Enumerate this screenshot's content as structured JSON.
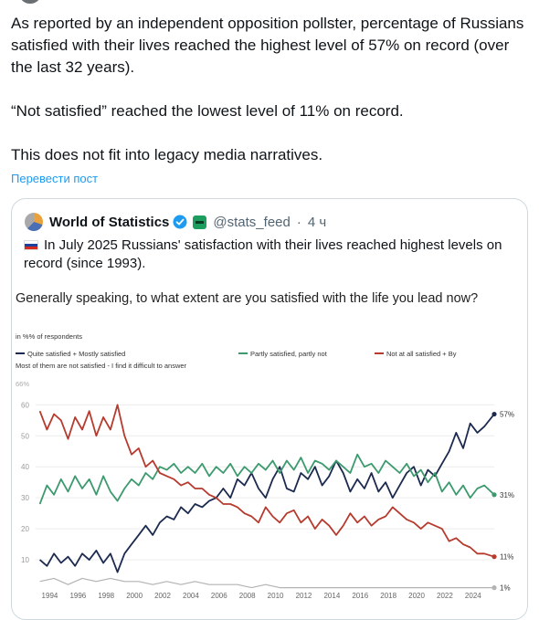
{
  "post": {
    "paragraphs": [
      "As reported by an independent opposition pollster, percentage of Russians satisfied with their lives reached the highest level of 57% on record (over the last 32 years).",
      "“Not satisfied” reached the lowest level of 11% on record.",
      "This does not fit into legacy media narratives."
    ],
    "translate_label": "Перевести пост"
  },
  "quote": {
    "author_name": "World of Statistics",
    "handle": "@stats_feed",
    "separator": "·",
    "time": "4 ч",
    "text": "In July 2025 Russians' satisfaction with their lives reached highest levels on record (since 1993).",
    "figure_question": "Generally speaking, to what extent are you satisfied with the life you lead now?"
  },
  "icons": {
    "verified": "verified-badge-icon",
    "affiliate": "affiliate-badge-icon",
    "flag": "russia-flag-icon"
  },
  "colors": {
    "link": "#1d9bf0",
    "series_satisfied": "#1b2a4e",
    "series_partly": "#3c9a6e",
    "series_not": "#b63b2e",
    "series_dk": "#b3b3b3"
  },
  "chart_data": {
    "type": "line",
    "unit_label": "in %% of respondents",
    "legend_note": "Most of them are not satisfied - I find it difficult to answer",
    "ylim": [
      0,
      66
    ],
    "yticks": [
      10,
      20,
      30,
      40,
      50,
      60
    ],
    "ytick_top_label": "66%",
    "xticks": [
      1994,
      1996,
      1998,
      2000,
      2002,
      2004,
      2006,
      2008,
      2010,
      2012,
      2014,
      2016,
      2018,
      2020,
      2022,
      2024
    ],
    "series": [
      {
        "name": "Quite satisfied + Mostly satisfied",
        "end_label": "57%",
        "points": [
          [
            1993.3,
            10
          ],
          [
            1993.8,
            8
          ],
          [
            1994.3,
            12
          ],
          [
            1994.8,
            9
          ],
          [
            1995.3,
            11
          ],
          [
            1995.8,
            8
          ],
          [
            1996.3,
            12
          ],
          [
            1996.8,
            10
          ],
          [
            1997.3,
            13
          ],
          [
            1997.8,
            9
          ],
          [
            1998.3,
            12
          ],
          [
            1998.8,
            6
          ],
          [
            1999.3,
            12
          ],
          [
            1999.8,
            15
          ],
          [
            2000.3,
            18
          ],
          [
            2000.8,
            21
          ],
          [
            2001.3,
            18
          ],
          [
            2001.8,
            22
          ],
          [
            2002.3,
            24
          ],
          [
            2002.8,
            23
          ],
          [
            2003.3,
            27
          ],
          [
            2003.8,
            25
          ],
          [
            2004.3,
            28
          ],
          [
            2004.8,
            27
          ],
          [
            2005.3,
            29
          ],
          [
            2005.8,
            30
          ],
          [
            2006.3,
            33
          ],
          [
            2006.8,
            30
          ],
          [
            2007.3,
            36
          ],
          [
            2007.8,
            34
          ],
          [
            2008.3,
            38
          ],
          [
            2008.8,
            33
          ],
          [
            2009.3,
            30
          ],
          [
            2009.8,
            36
          ],
          [
            2010.3,
            40
          ],
          [
            2010.8,
            33
          ],
          [
            2011.3,
            32
          ],
          [
            2011.8,
            38
          ],
          [
            2012.3,
            36
          ],
          [
            2012.8,
            40
          ],
          [
            2013.3,
            34
          ],
          [
            2013.8,
            37
          ],
          [
            2014.3,
            42
          ],
          [
            2014.8,
            38
          ],
          [
            2015.3,
            32
          ],
          [
            2015.8,
            36
          ],
          [
            2016.3,
            33
          ],
          [
            2016.8,
            38
          ],
          [
            2017.3,
            32
          ],
          [
            2017.8,
            35
          ],
          [
            2018.3,
            30
          ],
          [
            2018.8,
            34
          ],
          [
            2019.3,
            38
          ],
          [
            2019.8,
            40
          ],
          [
            2020.3,
            34
          ],
          [
            2020.8,
            39
          ],
          [
            2021.3,
            37
          ],
          [
            2021.8,
            41
          ],
          [
            2022.3,
            45
          ],
          [
            2022.8,
            51
          ],
          [
            2023.3,
            46
          ],
          [
            2023.8,
            54
          ],
          [
            2024.3,
            51
          ],
          [
            2024.8,
            53
          ],
          [
            2025.5,
            57
          ]
        ]
      },
      {
        "name": "Partly satisfied, partly not",
        "end_label": "31%",
        "points": [
          [
            1993.3,
            28
          ],
          [
            1993.8,
            34
          ],
          [
            1994.3,
            31
          ],
          [
            1994.8,
            36
          ],
          [
            1995.3,
            32
          ],
          [
            1995.8,
            37
          ],
          [
            1996.3,
            33
          ],
          [
            1996.8,
            36
          ],
          [
            1997.3,
            31
          ],
          [
            1997.8,
            37
          ],
          [
            1998.3,
            32
          ],
          [
            1998.8,
            29
          ],
          [
            1999.3,
            33
          ],
          [
            1999.8,
            36
          ],
          [
            2000.3,
            34
          ],
          [
            2000.8,
            38
          ],
          [
            2001.3,
            36
          ],
          [
            2001.8,
            40
          ],
          [
            2002.3,
            39
          ],
          [
            2002.8,
            41
          ],
          [
            2003.3,
            38
          ],
          [
            2003.8,
            40
          ],
          [
            2004.3,
            38
          ],
          [
            2004.8,
            41
          ],
          [
            2005.3,
            37
          ],
          [
            2005.8,
            40
          ],
          [
            2006.3,
            38
          ],
          [
            2006.8,
            41
          ],
          [
            2007.3,
            37
          ],
          [
            2007.8,
            40
          ],
          [
            2008.3,
            38
          ],
          [
            2008.8,
            41
          ],
          [
            2009.3,
            39
          ],
          [
            2009.8,
            42
          ],
          [
            2010.3,
            38
          ],
          [
            2010.8,
            42
          ],
          [
            2011.3,
            39
          ],
          [
            2011.8,
            43
          ],
          [
            2012.3,
            38
          ],
          [
            2012.8,
            42
          ],
          [
            2013.3,
            41
          ],
          [
            2013.8,
            39
          ],
          [
            2014.3,
            42
          ],
          [
            2014.8,
            40
          ],
          [
            2015.3,
            38
          ],
          [
            2015.8,
            44
          ],
          [
            2016.3,
            40
          ],
          [
            2016.8,
            41
          ],
          [
            2017.3,
            38
          ],
          [
            2017.8,
            42
          ],
          [
            2018.3,
            40
          ],
          [
            2018.8,
            38
          ],
          [
            2019.3,
            41
          ],
          [
            2019.8,
            37
          ],
          [
            2020.3,
            39
          ],
          [
            2020.8,
            35
          ],
          [
            2021.3,
            38
          ],
          [
            2021.8,
            32
          ],
          [
            2022.3,
            35
          ],
          [
            2022.8,
            31
          ],
          [
            2023.3,
            34
          ],
          [
            2023.8,
            30
          ],
          [
            2024.3,
            33
          ],
          [
            2024.8,
            34
          ],
          [
            2025.5,
            31
          ]
        ]
      },
      {
        "name": "Not at all satisfied + By",
        "end_label": "11%",
        "points": [
          [
            1993.3,
            58
          ],
          [
            1993.8,
            52
          ],
          [
            1994.3,
            57
          ],
          [
            1994.8,
            55
          ],
          [
            1995.3,
            49
          ],
          [
            1995.8,
            56
          ],
          [
            1996.3,
            52
          ],
          [
            1996.8,
            58
          ],
          [
            1997.3,
            50
          ],
          [
            1997.8,
            56
          ],
          [
            1998.3,
            52
          ],
          [
            1998.8,
            60
          ],
          [
            1999.3,
            50
          ],
          [
            1999.8,
            44
          ],
          [
            2000.3,
            46
          ],
          [
            2000.8,
            40
          ],
          [
            2001.3,
            42
          ],
          [
            2001.8,
            38
          ],
          [
            2002.3,
            37
          ],
          [
            2002.8,
            36
          ],
          [
            2003.3,
            34
          ],
          [
            2003.8,
            35
          ],
          [
            2004.3,
            33
          ],
          [
            2004.8,
            33
          ],
          [
            2005.3,
            31
          ],
          [
            2005.8,
            30
          ],
          [
            2006.3,
            28
          ],
          [
            2006.8,
            28
          ],
          [
            2007.3,
            27
          ],
          [
            2007.8,
            25
          ],
          [
            2008.3,
            24
          ],
          [
            2008.8,
            22
          ],
          [
            2009.3,
            27
          ],
          [
            2009.8,
            24
          ],
          [
            2010.3,
            22
          ],
          [
            2010.8,
            25
          ],
          [
            2011.3,
            26
          ],
          [
            2011.8,
            22
          ],
          [
            2012.3,
            24
          ],
          [
            2012.8,
            20
          ],
          [
            2013.3,
            23
          ],
          [
            2013.8,
            21
          ],
          [
            2014.3,
            18
          ],
          [
            2014.8,
            21
          ],
          [
            2015.3,
            25
          ],
          [
            2015.8,
            22
          ],
          [
            2016.3,
            24
          ],
          [
            2016.8,
            21
          ],
          [
            2017.3,
            23
          ],
          [
            2017.8,
            24
          ],
          [
            2018.3,
            27
          ],
          [
            2018.8,
            25
          ],
          [
            2019.3,
            23
          ],
          [
            2019.8,
            22
          ],
          [
            2020.3,
            20
          ],
          [
            2020.8,
            22
          ],
          [
            2021.3,
            21
          ],
          [
            2021.8,
            20
          ],
          [
            2022.3,
            16
          ],
          [
            2022.8,
            17
          ],
          [
            2023.3,
            15
          ],
          [
            2023.8,
            14
          ],
          [
            2024.3,
            12
          ],
          [
            2024.8,
            12
          ],
          [
            2025.5,
            11
          ]
        ]
      },
      {
        "name": "Most of them are not satisfied - I find it difficult to answer",
        "end_label": "1%",
        "points": [
          [
            1993.3,
            3
          ],
          [
            1994.3,
            4
          ],
          [
            1995.3,
            2
          ],
          [
            1996.3,
            4
          ],
          [
            1997.3,
            3
          ],
          [
            1998.3,
            4
          ],
          [
            1999.3,
            3
          ],
          [
            2000.3,
            3
          ],
          [
            2001.3,
            2
          ],
          [
            2002.3,
            3
          ],
          [
            2003.3,
            2
          ],
          [
            2004.3,
            3
          ],
          [
            2005.3,
            2
          ],
          [
            2006.3,
            2
          ],
          [
            2007.3,
            2
          ],
          [
            2008.3,
            1
          ],
          [
            2009.3,
            2
          ],
          [
            2010.3,
            1
          ],
          [
            2011.3,
            1
          ],
          [
            2012.3,
            1
          ],
          [
            2013.3,
            1
          ],
          [
            2014.3,
            1
          ],
          [
            2015.3,
            1
          ],
          [
            2016.3,
            1
          ],
          [
            2017.3,
            1
          ],
          [
            2018.3,
            1
          ],
          [
            2019.3,
            1
          ],
          [
            2020.3,
            1
          ],
          [
            2021.3,
            1
          ],
          [
            2022.3,
            1
          ],
          [
            2023.3,
            1
          ],
          [
            2024.3,
            1
          ],
          [
            2025.5,
            1
          ]
        ]
      }
    ]
  }
}
